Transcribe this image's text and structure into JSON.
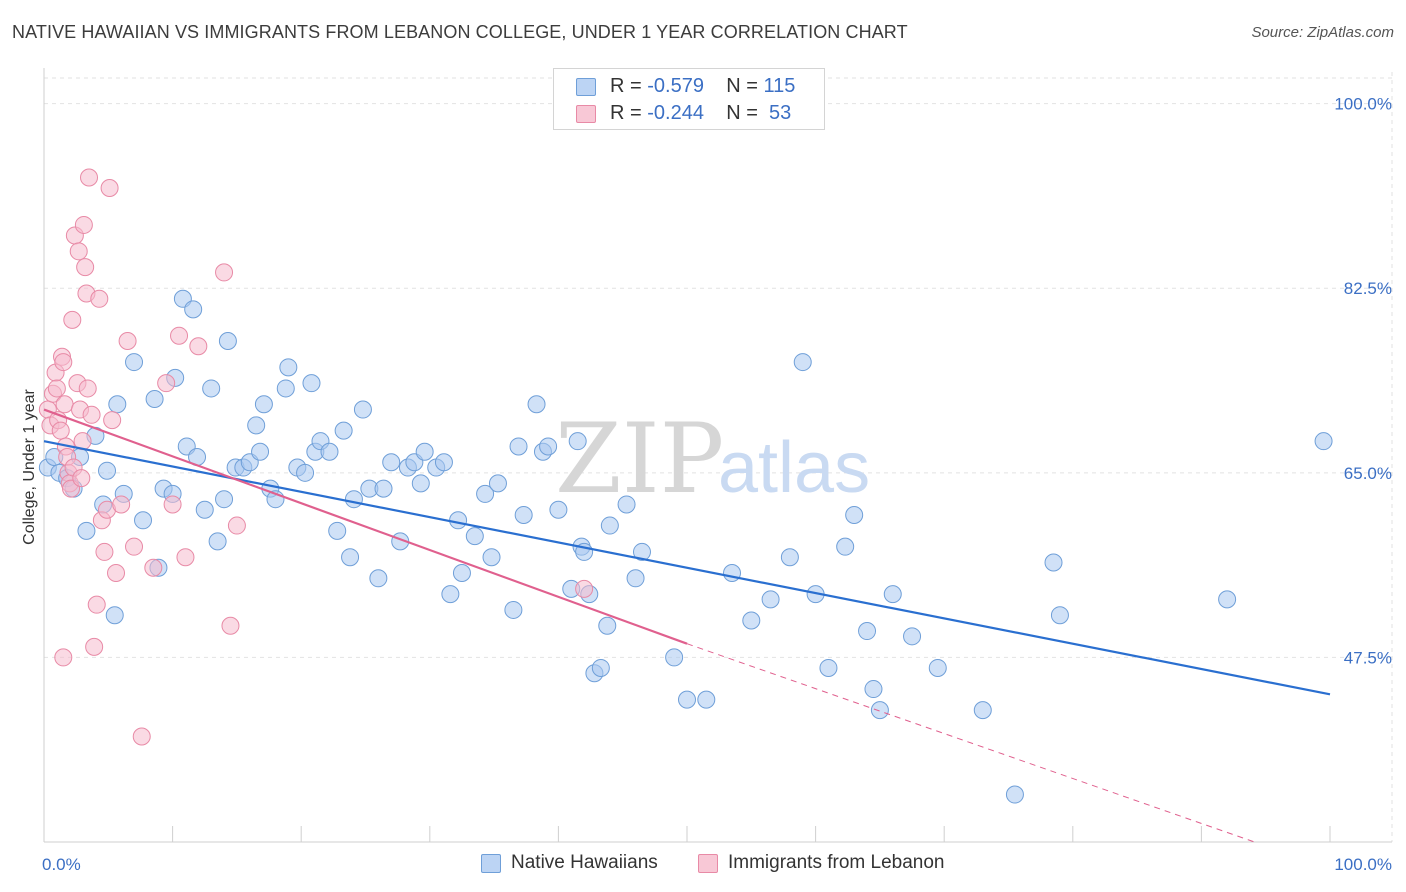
{
  "title": "NATIVE HAWAIIAN VS IMMIGRANTS FROM LEBANON COLLEGE, UNDER 1 YEAR CORRELATION CHART",
  "source": "Source: ZipAtlas.com",
  "watermark": {
    "zip": "ZIP",
    "atlas": "atlas"
  },
  "legend": {
    "rows": [
      {
        "r_label": "R =",
        "r_value": "-0.579",
        "n_label": "N =",
        "n_value": "115"
      },
      {
        "r_label": "R =",
        "r_value": "-0.244",
        "n_label": "N =",
        "n_value": "53"
      }
    ]
  },
  "bottom_legend": {
    "series1": "Native Hawaiians",
    "series2": "Immigrants from Lebanon"
  },
  "colors": {
    "blue_fill": "#aac8f0",
    "blue_stroke": "#6f9fd8",
    "blue_line": "#2a6fd0",
    "pink_fill": "#f6bccd",
    "pink_stroke": "#e88aa6",
    "pink_line": "#e0608e",
    "tick_text": "#3b6fc4"
  },
  "chart_data": {
    "type": "scatter",
    "title": "NATIVE HAWAIIAN VS IMMIGRANTS FROM LEBANON COLLEGE, UNDER 1 YEAR CORRELATION CHART",
    "xlabel": "",
    "ylabel": "College, Under 1 year",
    "xlim": [
      0,
      100
    ],
    "ylim": [
      30,
      103
    ],
    "x_tick_labels": [
      "0.0%",
      "100.0%"
    ],
    "y_ticks": [
      47.5,
      65.0,
      82.5,
      100.0
    ],
    "y_tick_labels": [
      "47.5%",
      "65.0%",
      "82.5%",
      "100.0%"
    ],
    "grid": true,
    "series": [
      {
        "name": "Native Hawaiians",
        "r": -0.579,
        "n": 115,
        "trend": {
          "x0": 0,
          "y0": 68.0,
          "x1": 100,
          "y1": 44.0
        },
        "points": [
          [
            0.3,
            65.5
          ],
          [
            0.8,
            66.5
          ],
          [
            1.2,
            65.0
          ],
          [
            1.8,
            64.5
          ],
          [
            2.3,
            63.5
          ],
          [
            2.8,
            66.5
          ],
          [
            3.3,
            59.5
          ],
          [
            4.0,
            68.5
          ],
          [
            4.6,
            62.0
          ],
          [
            4.9,
            65.2
          ],
          [
            5.5,
            51.5
          ],
          [
            5.7,
            71.5
          ],
          [
            6.2,
            63.0
          ],
          [
            7.0,
            75.5
          ],
          [
            7.7,
            60.5
          ],
          [
            8.6,
            72.0
          ],
          [
            8.9,
            56.0
          ],
          [
            9.3,
            63.5
          ],
          [
            10.0,
            63.0
          ],
          [
            10.2,
            74.0
          ],
          [
            10.8,
            81.5
          ],
          [
            11.1,
            67.5
          ],
          [
            11.6,
            80.5
          ],
          [
            11.9,
            66.5
          ],
          [
            12.5,
            61.5
          ],
          [
            13.0,
            73.0
          ],
          [
            13.5,
            58.5
          ],
          [
            14.0,
            62.5
          ],
          [
            14.3,
            77.5
          ],
          [
            14.9,
            65.5
          ],
          [
            15.5,
            65.5
          ],
          [
            16.0,
            66.0
          ],
          [
            16.5,
            69.5
          ],
          [
            16.8,
            67.0
          ],
          [
            17.1,
            71.5
          ],
          [
            17.6,
            63.5
          ],
          [
            18.0,
            62.5
          ],
          [
            18.8,
            73.0
          ],
          [
            19.0,
            75.0
          ],
          [
            19.7,
            65.5
          ],
          [
            20.3,
            65.0
          ],
          [
            20.8,
            73.5
          ],
          [
            21.1,
            67.0
          ],
          [
            21.5,
            68.0
          ],
          [
            22.2,
            67.0
          ],
          [
            22.8,
            59.5
          ],
          [
            23.3,
            69.0
          ],
          [
            23.8,
            57.0
          ],
          [
            24.1,
            62.5
          ],
          [
            24.8,
            71.0
          ],
          [
            25.3,
            63.5
          ],
          [
            26.0,
            55.0
          ],
          [
            26.4,
            63.5
          ],
          [
            27.0,
            66.0
          ],
          [
            27.7,
            58.5
          ],
          [
            28.3,
            65.5
          ],
          [
            28.8,
            66.0
          ],
          [
            29.3,
            64.0
          ],
          [
            29.6,
            67.0
          ],
          [
            30.5,
            65.5
          ],
          [
            31.1,
            66.0
          ],
          [
            31.6,
            53.5
          ],
          [
            32.2,
            60.5
          ],
          [
            32.5,
            55.5
          ],
          [
            33.5,
            59.0
          ],
          [
            34.3,
            63.0
          ],
          [
            34.8,
            57.0
          ],
          [
            35.3,
            64.0
          ],
          [
            36.5,
            52.0
          ],
          [
            36.9,
            67.5
          ],
          [
            37.3,
            61.0
          ],
          [
            38.3,
            71.5
          ],
          [
            38.8,
            67.0
          ],
          [
            39.2,
            67.5
          ],
          [
            40.0,
            61.5
          ],
          [
            41.0,
            54.0
          ],
          [
            41.5,
            68.0
          ],
          [
            41.8,
            58.0
          ],
          [
            42.0,
            57.5
          ],
          [
            42.4,
            53.5
          ],
          [
            42.8,
            46.0
          ],
          [
            43.3,
            46.5
          ],
          [
            43.8,
            50.5
          ],
          [
            44.0,
            60.0
          ],
          [
            45.3,
            62.0
          ],
          [
            46.0,
            55.0
          ],
          [
            46.5,
            57.5
          ],
          [
            49.0,
            47.5
          ],
          [
            50.0,
            43.5
          ],
          [
            51.5,
            43.5
          ],
          [
            53.5,
            55.5
          ],
          [
            55.0,
            51.0
          ],
          [
            56.5,
            53.0
          ],
          [
            58.0,
            57.0
          ],
          [
            59.0,
            75.5
          ],
          [
            60.0,
            53.5
          ],
          [
            61.0,
            46.5
          ],
          [
            62.3,
            58.0
          ],
          [
            63.0,
            61.0
          ],
          [
            64.0,
            50.0
          ],
          [
            64.5,
            44.5
          ],
          [
            65.0,
            42.5
          ],
          [
            66.0,
            53.5
          ],
          [
            67.5,
            49.5
          ],
          [
            69.5,
            46.5
          ],
          [
            73.0,
            42.5
          ],
          [
            75.5,
            34.5
          ],
          [
            78.5,
            56.5
          ],
          [
            79.0,
            51.5
          ],
          [
            92.0,
            53.0
          ],
          [
            99.5,
            68.0
          ]
        ]
      },
      {
        "name": "Immigrants from Lebanon",
        "r": -0.244,
        "n": 53,
        "trend": {
          "x0": 0,
          "y0": 71.0,
          "x1": 50,
          "y1": 48.8
        },
        "trend_dashed": {
          "x0": 50,
          "y0": 48.8,
          "x1": 100,
          "y1": 27.5
        },
        "points": [
          [
            0.3,
            71.0
          ],
          [
            0.5,
            69.5
          ],
          [
            0.7,
            72.5
          ],
          [
            0.9,
            74.5
          ],
          [
            1.0,
            73.0
          ],
          [
            1.1,
            70.0
          ],
          [
            1.3,
            69.0
          ],
          [
            1.4,
            76.0
          ],
          [
            1.5,
            75.5
          ],
          [
            1.6,
            71.5
          ],
          [
            1.7,
            67.5
          ],
          [
            1.8,
            66.5
          ],
          [
            1.9,
            65.0
          ],
          [
            2.0,
            64.0
          ],
          [
            2.1,
            63.5
          ],
          [
            2.2,
            79.5
          ],
          [
            2.3,
            65.5
          ],
          [
            2.4,
            87.5
          ],
          [
            2.6,
            73.5
          ],
          [
            2.7,
            86.0
          ],
          [
            2.8,
            71.0
          ],
          [
            2.9,
            64.5
          ],
          [
            3.0,
            68.0
          ],
          [
            3.1,
            88.5
          ],
          [
            3.2,
            84.5
          ],
          [
            3.3,
            82.0
          ],
          [
            3.4,
            73.0
          ],
          [
            3.5,
            93.0
          ],
          [
            3.7,
            70.5
          ],
          [
            3.9,
            48.5
          ],
          [
            4.1,
            52.5
          ],
          [
            4.3,
            81.5
          ],
          [
            4.5,
            60.5
          ],
          [
            4.7,
            57.5
          ],
          [
            4.9,
            61.5
          ],
          [
            5.1,
            92.0
          ],
          [
            5.3,
            70.0
          ],
          [
            5.6,
            55.5
          ],
          [
            6.0,
            62.0
          ],
          [
            6.5,
            77.5
          ],
          [
            7.0,
            58.0
          ],
          [
            7.6,
            40.0
          ],
          [
            8.5,
            56.0
          ],
          [
            9.5,
            73.5
          ],
          [
            10.0,
            62.0
          ],
          [
            10.5,
            78.0
          ],
          [
            11.0,
            57.0
          ],
          [
            12.0,
            77.0
          ],
          [
            14.0,
            84.0
          ],
          [
            14.5,
            50.5
          ],
          [
            15.0,
            60.0
          ],
          [
            42.0,
            54.0
          ],
          [
            1.5,
            47.5
          ]
        ]
      }
    ]
  }
}
